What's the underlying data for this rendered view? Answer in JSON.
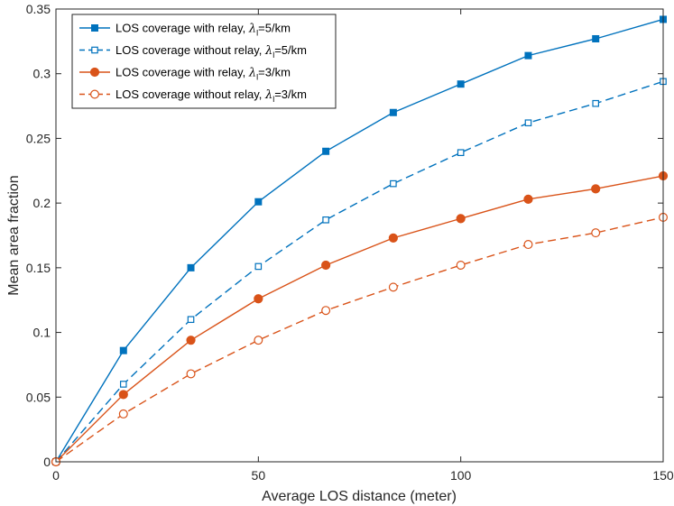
{
  "chart_data": {
    "type": "line",
    "title": "",
    "xlabel": "Average LOS distance (meter)",
    "ylabel": "Mean area fraction",
    "xlim": [
      0,
      150
    ],
    "ylim": [
      0,
      0.35
    ],
    "xticks": [
      0,
      50,
      100,
      150
    ],
    "xtick_labels": [
      "0",
      "50",
      "100",
      "150"
    ],
    "yticks": [
      0,
      0.05,
      0.1,
      0.15,
      0.2,
      0.25,
      0.3,
      0.35
    ],
    "ytick_labels": [
      "0",
      "0.05",
      "0.1",
      "0.15",
      "0.2",
      "0.25",
      "0.3",
      "0.35"
    ],
    "grid": false,
    "legend_position": "top-left",
    "x": [
      0,
      16.67,
      33.33,
      50,
      66.67,
      83.33,
      100,
      116.67,
      133.33,
      150
    ],
    "series": [
      {
        "name": "LOS coverage with relay, λl=5/km",
        "label_prefix": "LOS coverage with relay, ",
        "lambda_symbol": "λ",
        "lambda_subscript": "l",
        "label_suffix": "=5/km",
        "color": "#0072BD",
        "line_style": "solid",
        "marker": "filled-square",
        "values": [
          0,
          0.086,
          0.15,
          0.201,
          0.24,
          0.27,
          0.292,
          0.314,
          0.327,
          0.342
        ]
      },
      {
        "name": "LOS coverage without relay, λl=5/km",
        "label_prefix": "LOS coverage without relay, ",
        "lambda_symbol": "λ",
        "lambda_subscript": "l",
        "label_suffix": "=5/km",
        "color": "#0072BD",
        "line_style": "dashed",
        "marker": "open-square",
        "values": [
          0,
          0.06,
          0.11,
          0.151,
          0.187,
          0.215,
          0.239,
          0.262,
          0.277,
          0.294
        ]
      },
      {
        "name": "LOS coverage with relay, λl=3/km",
        "label_prefix": "LOS coverage with relay, ",
        "lambda_symbol": "λ",
        "lambda_subscript": "l",
        "label_suffix": "=3/km",
        "color": "#D95319",
        "line_style": "solid",
        "marker": "filled-circle",
        "values": [
          0,
          0.052,
          0.094,
          0.126,
          0.152,
          0.173,
          0.188,
          0.203,
          0.211,
          0.221
        ]
      },
      {
        "name": "LOS coverage without relay, λl=3/km",
        "label_prefix": "LOS coverage without relay, ",
        "lambda_symbol": "λ",
        "lambda_subscript": "l",
        "label_suffix": "=3/km",
        "color": "#D95319",
        "line_style": "dashed",
        "marker": "open-circle",
        "values": [
          0,
          0.037,
          0.068,
          0.094,
          0.117,
          0.135,
          0.152,
          0.168,
          0.177,
          0.189
        ]
      }
    ]
  }
}
